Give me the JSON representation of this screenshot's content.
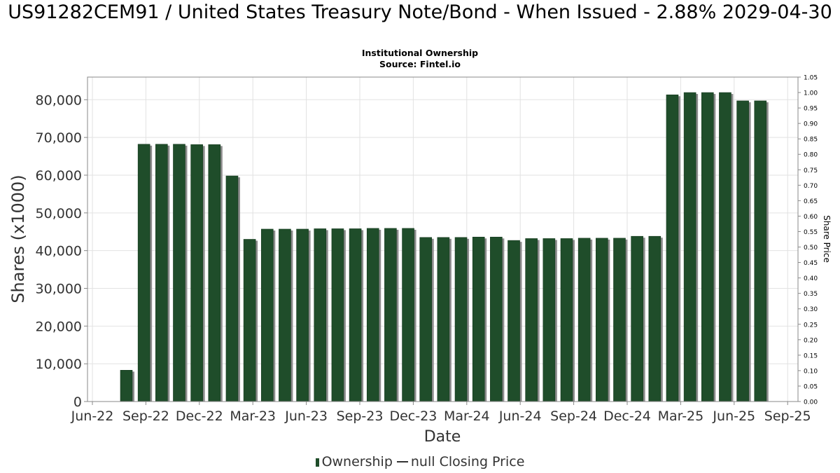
{
  "title": "US91282CEM91 / United States Treasury Note/Bond - When Issued - 2.88% 2029-04-30",
  "subtitle_line1": "Institutional Ownership",
  "subtitle_line2": "Source: Fintel.io",
  "legend": {
    "ownership_label": "Ownership",
    "price_label": "null Closing Price"
  },
  "colors": {
    "bar": "#1f4d2a",
    "bar_shadow": "#8c8c8c",
    "grid": "#e2e2e2"
  },
  "chart_data": {
    "type": "bar",
    "xlabel": "Date",
    "ylabel": "Shares (x1000)",
    "y2label": "Share Price",
    "ylim": [
      0,
      86000
    ],
    "y2lim": [
      0,
      1.05
    ],
    "grid": true,
    "legend_position": "bottom",
    "x_ticks": [
      "Jun-22",
      "Sep-22",
      "Dec-22",
      "Mar-23",
      "Jun-23",
      "Sep-23",
      "Dec-23",
      "Mar-24",
      "Jun-24",
      "Sep-24",
      "Dec-24",
      "Mar-25",
      "Jun-25",
      "Sep-25"
    ],
    "y_ticks": [
      0,
      10000,
      20000,
      30000,
      40000,
      50000,
      60000,
      70000,
      80000
    ],
    "y2_ticks": [
      0.0,
      0.05,
      0.1,
      0.15,
      0.2,
      0.25,
      0.3,
      0.35,
      0.4,
      0.45,
      0.5,
      0.55,
      0.6,
      0.65,
      0.7,
      0.75,
      0.8,
      0.85,
      0.9,
      0.95,
      1.0,
      1.05
    ],
    "series": [
      {
        "name": "Ownership",
        "values": [
          8300,
          68200,
          68200,
          68200,
          68100,
          68100,
          59800,
          43000,
          45700,
          45700,
          45700,
          45800,
          45800,
          45800,
          45900,
          45900,
          45900,
          43500,
          43500,
          43500,
          43600,
          43600,
          42700,
          43200,
          43200,
          43200,
          43300,
          43300,
          43300,
          43800,
          43800,
          81300,
          81900,
          81900,
          81900,
          79700,
          79700
        ]
      },
      {
        "name": "null Closing Price",
        "values": []
      }
    ]
  }
}
